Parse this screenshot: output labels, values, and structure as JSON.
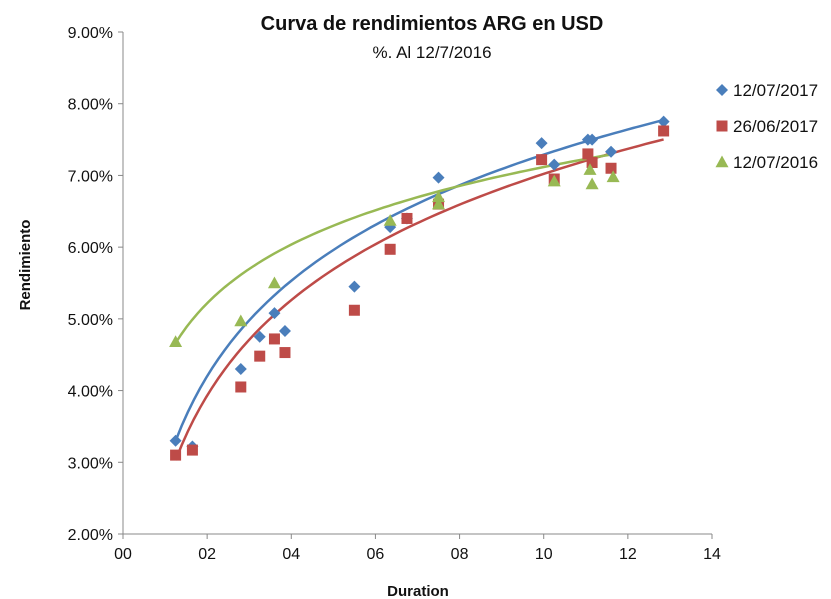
{
  "chart_data": {
    "type": "scatter",
    "title": "Curva de rendimientos ARG en USD",
    "subtitle": "%. Al 12/7/2016",
    "xlabel": "Duration",
    "ylabel": "Rendimiento",
    "xlim": [
      0,
      14
    ],
    "ylim": [
      2.0,
      9.0
    ],
    "x_ticks": [
      "00",
      "02",
      "04",
      "06",
      "08",
      "10",
      "12",
      "14"
    ],
    "y_ticks": [
      "2.00%",
      "3.00%",
      "4.00%",
      "5.00%",
      "6.00%",
      "7.00%",
      "8.00%",
      "9.00%"
    ],
    "grid": false,
    "legend_position": "right",
    "series": [
      {
        "name": "12/07/2017",
        "color": "#4A7EBB",
        "marker": "diamond",
        "x": [
          1.25,
          1.65,
          2.8,
          3.25,
          3.6,
          3.85,
          5.5,
          6.35,
          6.75,
          7.5,
          9.95,
          10.25,
          11.05,
          11.15,
          11.6,
          12.85
        ],
        "y": [
          3.3,
          3.22,
          4.3,
          4.75,
          5.08,
          4.83,
          5.45,
          6.28,
          6.4,
          6.97,
          7.45,
          7.15,
          7.5,
          7.5,
          7.33,
          7.75
        ],
        "trend_coef": [
          2.87,
          1.92
        ]
      },
      {
        "name": "26/06/2017",
        "color": "#BE4B48",
        "marker": "square",
        "x": [
          1.25,
          1.65,
          2.8,
          3.25,
          3.6,
          3.85,
          5.5,
          6.35,
          6.75,
          7.5,
          9.95,
          10.25,
          11.05,
          11.15,
          11.6,
          12.85
        ],
        "y": [
          3.1,
          3.17,
          4.05,
          4.48,
          4.72,
          4.53,
          5.12,
          5.97,
          6.4,
          6.6,
          7.22,
          6.95,
          7.3,
          7.18,
          7.1,
          7.62
        ],
        "trend_coef": [
          2.6,
          1.92
        ]
      },
      {
        "name": "12/07/2016",
        "color": "#98B954",
        "marker": "triangle",
        "x": [
          1.25,
          2.8,
          3.6,
          6.35,
          7.5,
          7.5,
          10.25,
          11.1,
          11.15,
          11.65
        ],
        "y": [
          4.68,
          4.97,
          5.5,
          6.37,
          6.6,
          6.7,
          6.92,
          7.08,
          6.88,
          6.98
        ],
        "trend_coef": [
          4.4,
          1.18
        ]
      }
    ]
  }
}
